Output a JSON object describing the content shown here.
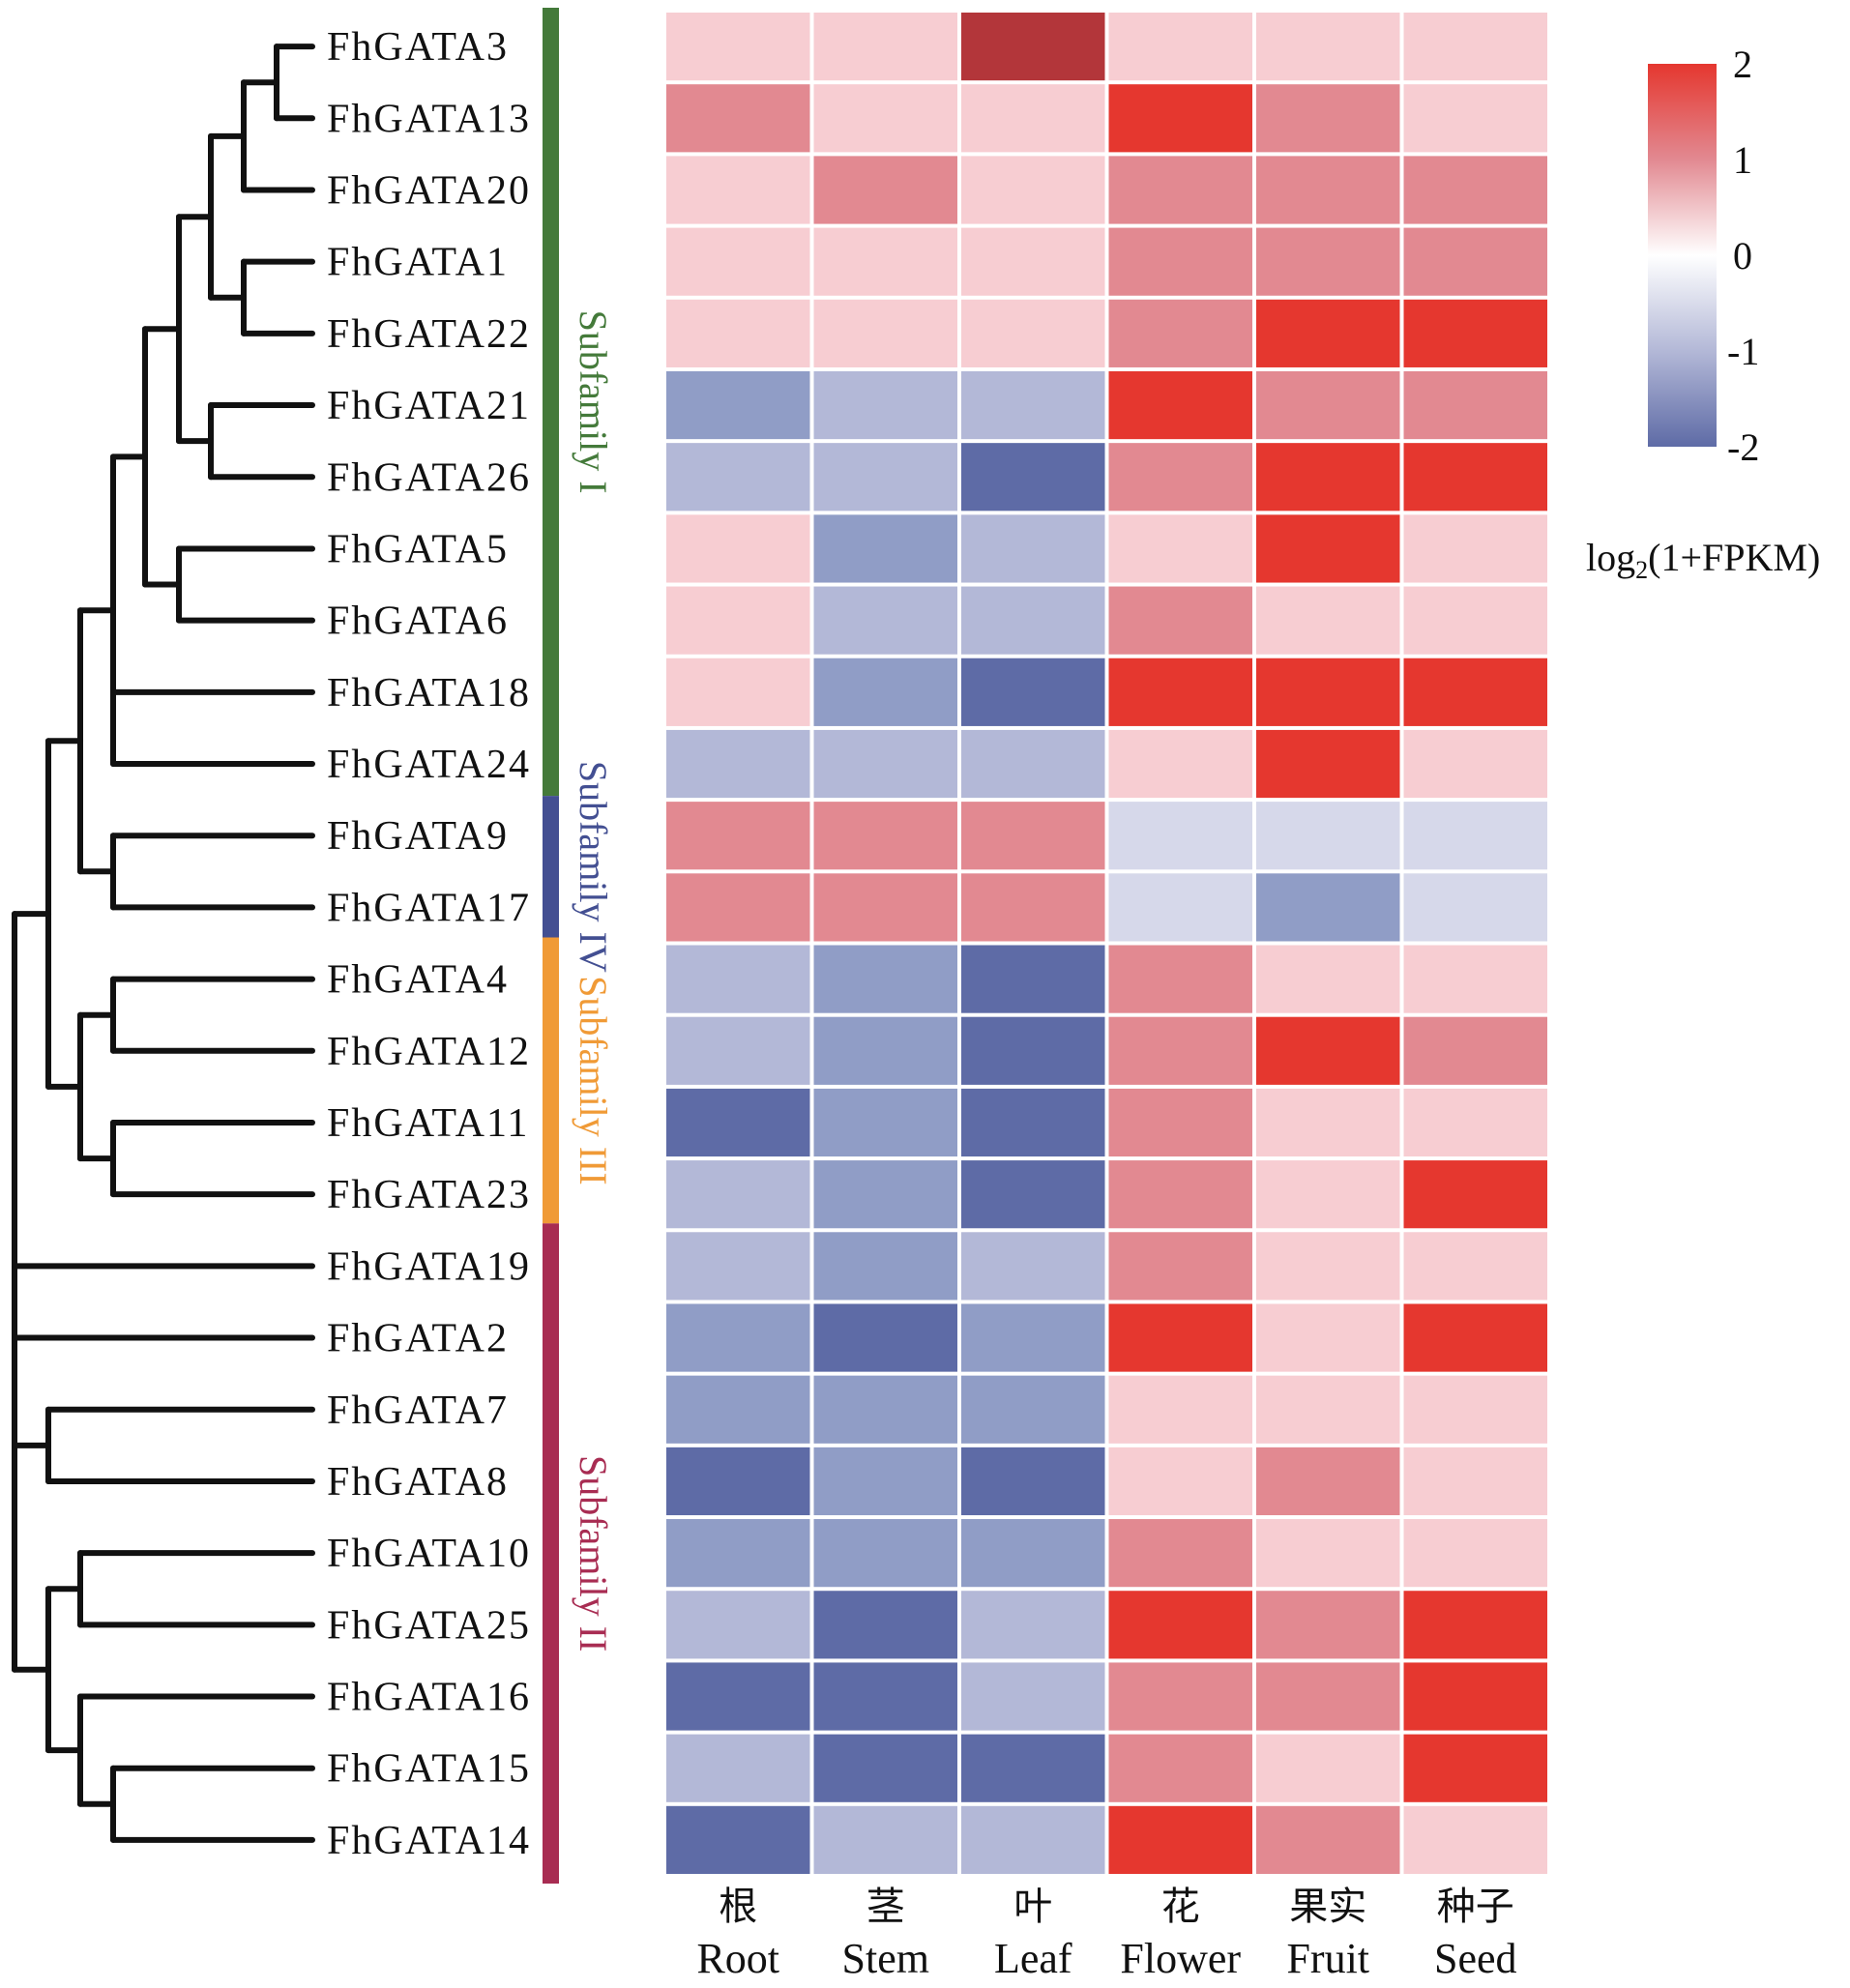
{
  "chart_data": {
    "type": "heatmap",
    "title": "",
    "columns": [
      {
        "zh": "根",
        "en": "Root"
      },
      {
        "zh": "茎",
        "en": "Stem"
      },
      {
        "zh": "叶",
        "en": "Leaf"
      },
      {
        "zh": "花",
        "en": "Flower"
      },
      {
        "zh": "果实",
        "en": "Fruit"
      },
      {
        "zh": "种子",
        "en": "Seed"
      }
    ],
    "rows": [
      "FhGATA3",
      "FhGATA13",
      "FhGATA20",
      "FhGATA1",
      "FhGATA22",
      "FhGATA21",
      "FhGATA26",
      "FhGATA5",
      "FhGATA6",
      "FhGATA18",
      "FhGATA24",
      "FhGATA9",
      "FhGATA17",
      "FhGATA4",
      "FhGATA12",
      "FhGATA11",
      "FhGATA23",
      "FhGATA19",
      "FhGATA2",
      "FhGATA7",
      "FhGATA8",
      "FhGATA10",
      "FhGATA25",
      "FhGATA16",
      "FhGATA15",
      "FhGATA14"
    ],
    "values": [
      [
        0.5,
        0.5,
        2.5,
        0.5,
        0.5,
        0.5
      ],
      [
        1,
        0.5,
        0.5,
        2,
        1,
        0.5
      ],
      [
        0.5,
        1,
        0.5,
        1,
        1,
        1
      ],
      [
        0.5,
        0.5,
        0.5,
        1,
        1,
        1
      ],
      [
        0.5,
        0.5,
        0.5,
        1,
        2,
        2
      ],
      [
        -1.5,
        -1,
        -1,
        2,
        1,
        1
      ],
      [
        -1,
        -1,
        -2,
        1,
        2,
        2
      ],
      [
        0.5,
        -1.5,
        -1,
        0.5,
        2,
        0.5
      ],
      [
        0.5,
        -1,
        -1,
        1,
        0.5,
        0.5
      ],
      [
        0.5,
        -1.5,
        -2,
        2,
        2,
        2
      ],
      [
        -1,
        -1,
        -1,
        0.5,
        2,
        0.5
      ],
      [
        1,
        1,
        1,
        -0.5,
        -0.5,
        -0.5
      ],
      [
        1,
        1,
        1,
        -0.5,
        -1.5,
        -0.5
      ],
      [
        -1,
        -1.5,
        -2,
        1,
        0.5,
        0.5
      ],
      [
        -1,
        -1.5,
        -2,
        1,
        2,
        1
      ],
      [
        -2,
        -1.5,
        -2,
        1,
        0.5,
        0.5
      ],
      [
        -1,
        -1.5,
        -2,
        1,
        0.5,
        2
      ],
      [
        -1,
        -1.5,
        -1,
        1,
        0.5,
        0.5
      ],
      [
        -1.5,
        -2,
        -1.5,
        2,
        0.5,
        2
      ],
      [
        -1.5,
        -1.5,
        -1.5,
        0.5,
        0.5,
        0.5
      ],
      [
        -2,
        -1.5,
        -2,
        0.5,
        1,
        0.5
      ],
      [
        -1.5,
        -1.5,
        -1.5,
        1,
        0.5,
        0.5
      ],
      [
        -1,
        -2,
        -1,
        2,
        1,
        2
      ],
      [
        -2,
        -2,
        -1,
        1,
        1,
        2
      ],
      [
        -1,
        -2,
        -2,
        1,
        0.5,
        2
      ],
      [
        -2,
        -1,
        -1,
        2,
        1,
        0.5
      ]
    ],
    "color_levels": [
      {
        "value": -2,
        "color": "#5e6ba6"
      },
      {
        "value": -1.5,
        "color": "#909dc6"
      },
      {
        "value": -1,
        "color": "#b3b8d7"
      },
      {
        "value": -0.5,
        "color": "#d6d8ea"
      },
      {
        "value": 0.5,
        "color": "#f7cdd2"
      },
      {
        "value": 1,
        "color": "#e28991"
      },
      {
        "value": 2,
        "color": "#e5372f"
      },
      {
        "value": 2.5,
        "color": "#b3363a"
      }
    ],
    "colorbar": {
      "title_main": "log",
      "title_sub": "2",
      "title_rest": "(1+FPKM)",
      "range": [
        -2,
        2
      ],
      "ticks": [
        "2",
        "1",
        "0",
        "-1",
        "-2"
      ],
      "tick_values": [
        2,
        1,
        0,
        -1,
        -2
      ],
      "stops": [
        "#e5372f",
        "#e28991",
        "#ffffff",
        "#b3b8d7",
        "#5e6ba6"
      ],
      "placement": "top-right"
    },
    "subfamilies": [
      {
        "name": "Subfamily I",
        "color": "#447a3a",
        "first_row": 0,
        "last_row": 10
      },
      {
        "name": "Subfamily IV",
        "color": "#434f92",
        "first_row": 11,
        "last_row": 12
      },
      {
        "name": "Subfamily III",
        "color": "#f09a36",
        "first_row": 13,
        "last_row": 16
      },
      {
        "name": "Subfamily II",
        "color": "#a82c52",
        "first_row": 17,
        "last_row": 25
      }
    ],
    "dendrogram": {
      "description": "Hierarchical clustering of GATA genes (rows)",
      "tree": [
        [
          [
            [
              [
                [
                  [
                    [
                      "FhGATA3",
                      "FhGATA13"
                    ],
                    "FhGATA20"
                  ],
                  [
                    [
                      "FhGATA1",
                      "FhGATA22"
                    ]
                  ]
                ],
                [
                  "FhGATA21",
                  "FhGATA26"
                ]
              ],
              [
                "FhGATA5",
                "FhGATA6"
              ]
            ],
            "FhGATA18",
            "FhGATA24"
          ],
          [
            "FhGATA9",
            "FhGATA17"
          ]
        ],
        [
          [
            "FhGATA4",
            "FhGATA12"
          ],
          [
            "FhGATA11",
            "FhGATA23"
          ]
        ]
      ]
    }
  }
}
